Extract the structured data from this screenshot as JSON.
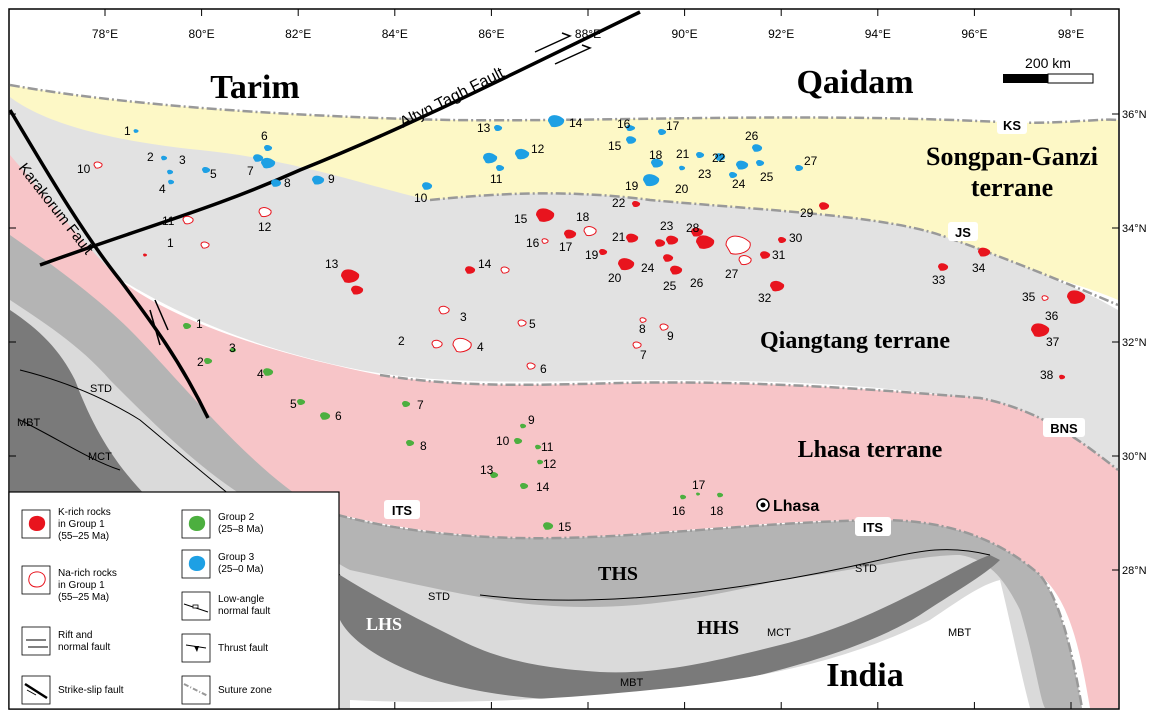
{
  "longitudes": [
    "78°E",
    "80°E",
    "82°E",
    "84°E",
    "86°E",
    "88°E",
    "90°E",
    "92°E",
    "94°E",
    "96°E",
    "98°E"
  ],
  "latitudes": [
    "36°N",
    "34°N",
    "32°N",
    "30°N",
    "28°N"
  ],
  "scale": {
    "label": "200 km"
  },
  "regions": {
    "tarim": "Tarim",
    "qaidam": "Qaidam",
    "songpan_1": "Songpan-Ganzi",
    "songpan_2": "terrane",
    "qiangtang": "Qiangtang terrane",
    "lhasa_terrane": "Lhasa terrane",
    "india": "India",
    "ths": "THS",
    "hhs": "HHS",
    "lhs": "LHS"
  },
  "faults": {
    "altyn": "Altyn Tagh Fault",
    "karakorum": "Karakorum Fault",
    "std": "STD",
    "mbt": "MBT",
    "mct": "MCT"
  },
  "sutures": {
    "ks": "KS",
    "js": "JS",
    "bns": "BNS",
    "its": "ITS"
  },
  "city": "Lhasa",
  "legend": {
    "k_rich": [
      "K-rich rocks",
      "in Group 1",
      "(55–25 Ma)"
    ],
    "na_rich": [
      "Na-rich rocks",
      "in Group 1",
      "(55–25 Ma)"
    ],
    "rift": [
      "Rift and",
      "normal fault"
    ],
    "strike_slip": "Strike-slip fault",
    "group2": [
      "Group 2",
      "(25–8 Ma)"
    ],
    "group3": [
      "Group 3",
      "(25–0 Ma)"
    ],
    "low_angle": [
      "Low-angle",
      "normal fault"
    ],
    "thrust": "Thrust fault",
    "suture": "Suture zone"
  },
  "colors": {
    "k_rich": "#e8141e",
    "na_rich_outline": "#e8141e",
    "group2": "#4caf3f",
    "group3": "#1ea0e4",
    "songpan": "#fdf8c6",
    "qiangtang": "#e2e2e2",
    "lhasa": "#f7c5c8",
    "ths": "#b4b4b4",
    "hhs": "#dadada",
    "lhs": "#7a7a7a"
  },
  "group3_labels": [
    "1",
    "2",
    "3",
    "4",
    "5",
    "6",
    "7",
    "8",
    "9",
    "10",
    "11",
    "12",
    "13",
    "14",
    "15",
    "16",
    "17",
    "18",
    "19",
    "20",
    "21",
    "22",
    "23",
    "24",
    "25",
    "26",
    "27"
  ],
  "group1_labels": [
    "1",
    "2",
    "3",
    "4",
    "5",
    "6",
    "7",
    "8",
    "9",
    "10",
    "11",
    "12",
    "13",
    "14",
    "15",
    "16",
    "17",
    "18",
    "19",
    "20",
    "21",
    "22",
    "23",
    "24",
    "25",
    "26",
    "27",
    "28",
    "29",
    "30",
    "31",
    "32",
    "33",
    "34",
    "35",
    "36",
    "37",
    "38"
  ],
  "group2_labels": [
    "1",
    "2",
    "3",
    "4",
    "5",
    "6",
    "7",
    "8",
    "9",
    "10",
    "11",
    "12",
    "13",
    "14",
    "15",
    "16",
    "17",
    "18"
  ]
}
